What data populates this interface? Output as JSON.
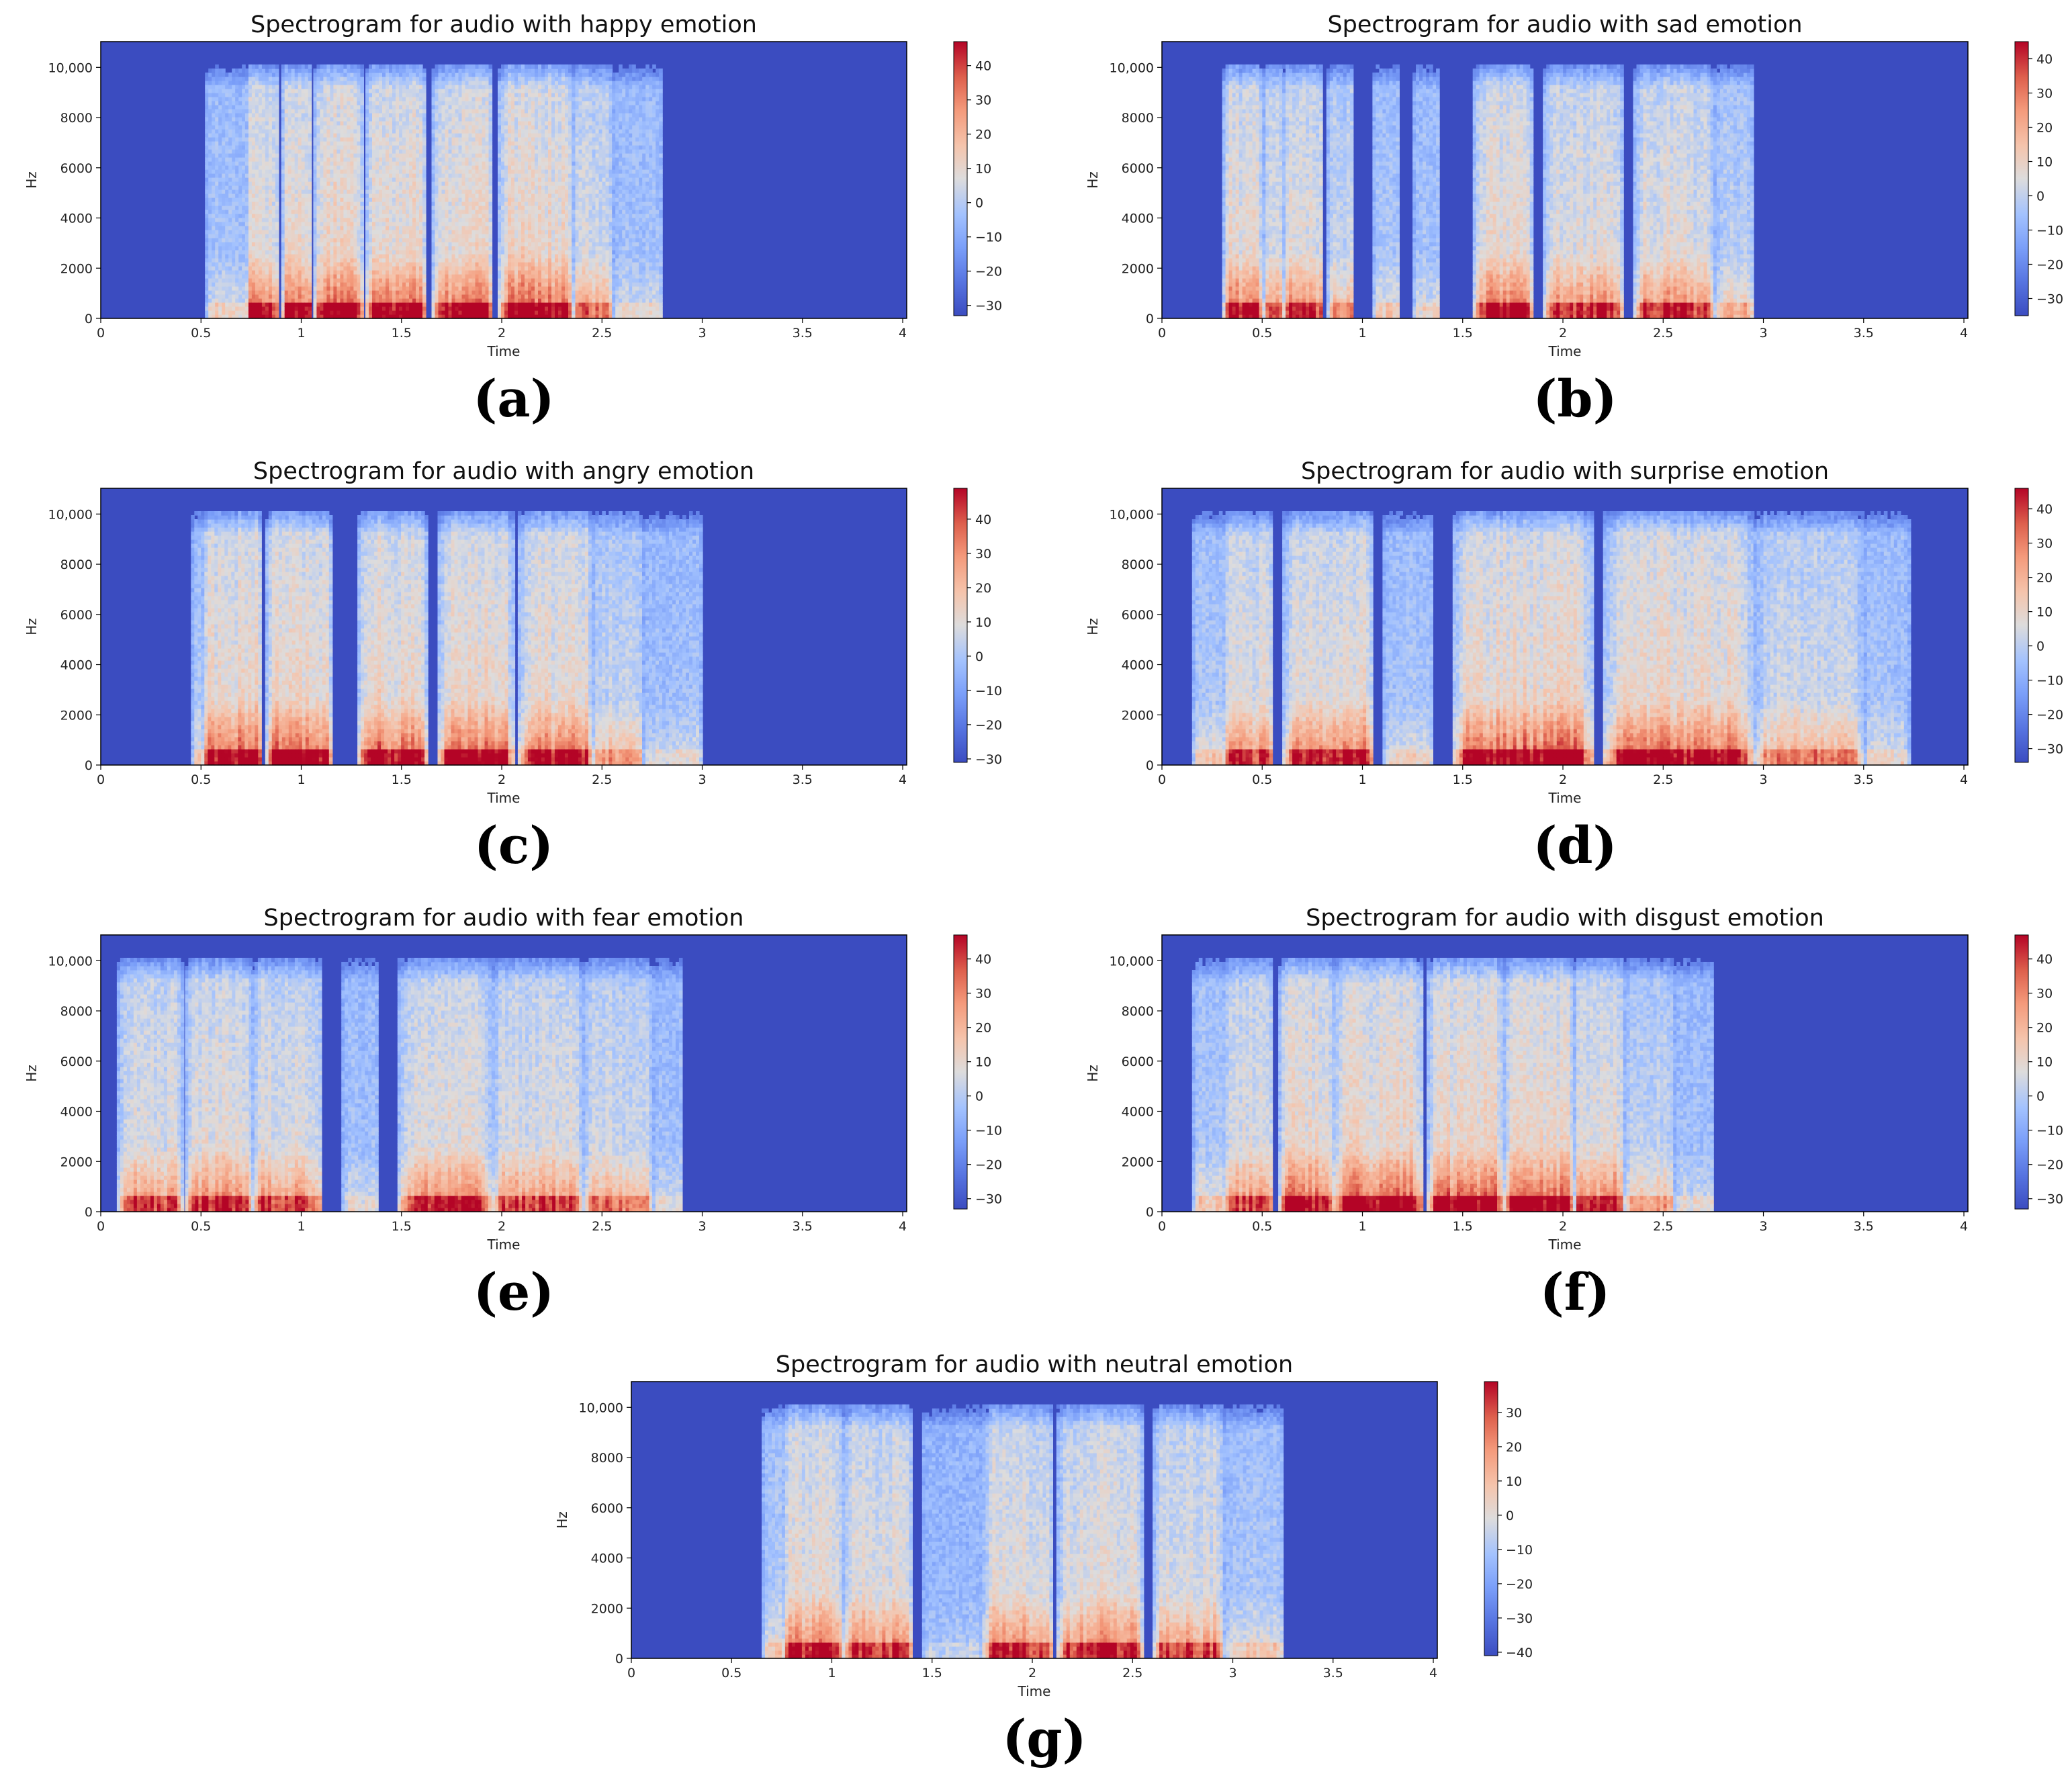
{
  "chart_data": [
    {
      "type": "heatmap",
      "id": "a",
      "subplot_label": "(a)",
      "title": "Spectrogram for audio with happy emotion",
      "xlabel": "Time",
      "ylabel": "Hz",
      "xlim": [
        0,
        4.02
      ],
      "ylim": [
        0,
        11025
      ],
      "xticks": [
        0,
        0.5,
        1,
        1.5,
        2,
        2.5,
        3,
        3.5,
        4
      ],
      "xtick_labels": [
        "0",
        "0.5",
        "1",
        "1.5",
        "2",
        "2.5",
        "3",
        "3.5",
        "4"
      ],
      "yticks": [
        0,
        2000,
        4000,
        6000,
        8000,
        10000
      ],
      "ytick_labels": [
        "0",
        "2000",
        "4000",
        "6000",
        "8000",
        "10,000"
      ],
      "colorbar": {
        "ticks": [
          40,
          30,
          20,
          10,
          0,
          -10,
          -20,
          -30
        ],
        "labels": [
          "40",
          "30",
          "20",
          "10",
          "0",
          "−10",
          "−20",
          "−30"
        ],
        "vmin": -33,
        "vmax": 47
      },
      "segments": [
        [
          0.52,
          0.72,
          0.35
        ],
        [
          0.72,
          0.88,
          0.9
        ],
        [
          0.9,
          1.05,
          0.95
        ],
        [
          1.06,
          1.3,
          1.0
        ],
        [
          1.32,
          1.62,
          1.0
        ],
        [
          1.65,
          1.95,
          0.95
        ],
        [
          1.98,
          2.35,
          1.0
        ],
        [
          2.35,
          2.55,
          0.7
        ],
        [
          2.55,
          2.8,
          0.3
        ]
      ]
    },
    {
      "type": "heatmap",
      "id": "b",
      "subplot_label": "(b)",
      "title": "Spectrogram for audio with sad emotion",
      "xlabel": "Time",
      "ylabel": "Hz",
      "xlim": [
        0,
        4.02
      ],
      "ylim": [
        0,
        11025
      ],
      "xticks": [
        0,
        0.5,
        1,
        1.5,
        2,
        2.5,
        3,
        3.5,
        4
      ],
      "xtick_labels": [
        "0",
        "0.5",
        "1",
        "1.5",
        "2",
        "2.5",
        "3",
        "3.5",
        "4"
      ],
      "yticks": [
        0,
        2000,
        4000,
        6000,
        8000,
        10000
      ],
      "ytick_labels": [
        "0",
        "2000",
        "4000",
        "6000",
        "8000",
        "10,000"
      ],
      "colorbar": {
        "ticks": [
          40,
          30,
          20,
          10,
          0,
          -10,
          -20,
          -30
        ],
        "labels": [
          "40",
          "30",
          "20",
          "10",
          "0",
          "−10",
          "−20",
          "−30"
        ],
        "vmin": -35,
        "vmax": 45
      },
      "segments": [
        [
          0.3,
          0.5,
          0.9
        ],
        [
          0.5,
          0.6,
          0.7
        ],
        [
          0.6,
          0.8,
          0.8
        ],
        [
          0.82,
          0.95,
          0.6
        ],
        [
          1.05,
          1.18,
          0.4
        ],
        [
          1.25,
          1.38,
          0.35
        ],
        [
          1.55,
          1.85,
          0.9
        ],
        [
          1.9,
          2.3,
          0.85
        ],
        [
          2.35,
          2.75,
          0.85
        ],
        [
          2.75,
          2.95,
          0.5
        ]
      ]
    },
    {
      "type": "heatmap",
      "id": "c",
      "subplot_label": "(c)",
      "title": "Spectrogram for audio with angry emotion",
      "xlabel": "Time",
      "ylabel": "Hz",
      "xlim": [
        0,
        4.02
      ],
      "ylim": [
        0,
        11025
      ],
      "xticks": [
        0,
        0.5,
        1,
        1.5,
        2,
        2.5,
        3,
        3.5,
        4
      ],
      "xtick_labels": [
        "0",
        "0.5",
        "1",
        "1.5",
        "2",
        "2.5",
        "3",
        "3.5",
        "4"
      ],
      "yticks": [
        0,
        2000,
        4000,
        6000,
        8000,
        10000
      ],
      "ytick_labels": [
        "0",
        "2000",
        "4000",
        "6000",
        "8000",
        "10,000"
      ],
      "colorbar": {
        "ticks": [
          40,
          30,
          20,
          10,
          0,
          -10,
          -20,
          -30
        ],
        "labels": [
          "40",
          "30",
          "20",
          "10",
          "0",
          "−10",
          "−20",
          "−30"
        ],
        "vmin": -31,
        "vmax": 49
      },
      "segments": [
        [
          0.45,
          0.5,
          0.4
        ],
        [
          0.5,
          0.8,
          1.0
        ],
        [
          0.82,
          1.15,
          1.0
        ],
        [
          1.28,
          1.62,
          1.0
        ],
        [
          1.68,
          2.05,
          1.0
        ],
        [
          2.08,
          2.45,
          0.95
        ],
        [
          2.45,
          2.7,
          0.6
        ],
        [
          2.7,
          3.0,
          0.3
        ]
      ]
    },
    {
      "type": "heatmap",
      "id": "d",
      "subplot_label": "(d)",
      "title": "Spectrogram for audio with surprise emotion",
      "xlabel": "Time",
      "ylabel": "Hz",
      "xlim": [
        0,
        4.02
      ],
      "ylim": [
        0,
        11025
      ],
      "xticks": [
        0,
        0.5,
        1,
        1.5,
        2,
        2.5,
        3,
        3.5,
        4
      ],
      "xtick_labels": [
        "0",
        "0.5",
        "1",
        "1.5",
        "2",
        "2.5",
        "3",
        "3.5",
        "4"
      ],
      "yticks": [
        0,
        2000,
        4000,
        6000,
        8000,
        10000
      ],
      "ytick_labels": [
        "0",
        "2000",
        "4000",
        "6000",
        "8000",
        "10,000"
      ],
      "colorbar": {
        "ticks": [
          40,
          30,
          20,
          10,
          0,
          -10,
          -20,
          -30
        ],
        "labels": [
          "40",
          "30",
          "20",
          "10",
          "0",
          "−10",
          "−20",
          "−30"
        ],
        "vmin": -34,
        "vmax": 46
      },
      "segments": [
        [
          0.15,
          0.3,
          0.4
        ],
        [
          0.3,
          0.55,
          0.8
        ],
        [
          0.6,
          1.05,
          0.95
        ],
        [
          1.1,
          1.35,
          0.35
        ],
        [
          1.45,
          2.15,
          1.0
        ],
        [
          2.2,
          2.95,
          0.95
        ],
        [
          2.95,
          3.5,
          0.65
        ],
        [
          3.5,
          3.72,
          0.35
        ]
      ]
    },
    {
      "type": "heatmap",
      "id": "e",
      "subplot_label": "(e)",
      "title": "Spectrogram for audio with fear emotion",
      "xlabel": "Time",
      "ylabel": "Hz",
      "xlim": [
        0,
        4.02
      ],
      "ylim": [
        0,
        11025
      ],
      "xticks": [
        0,
        0.5,
        1,
        1.5,
        2,
        2.5,
        3,
        3.5,
        4
      ],
      "xtick_labels": [
        "0",
        "0.5",
        "1",
        "1.5",
        "2",
        "2.5",
        "3",
        "3.5",
        "4"
      ],
      "yticks": [
        0,
        2000,
        4000,
        6000,
        8000,
        10000
      ],
      "ytick_labels": [
        "0",
        "2000",
        "4000",
        "6000",
        "8000",
        "10,000"
      ],
      "colorbar": {
        "ticks": [
          40,
          30,
          20,
          10,
          0,
          -10,
          -20,
          -30
        ],
        "labels": [
          "40",
          "30",
          "20",
          "10",
          "0",
          "−10",
          "−20",
          "−30"
        ],
        "vmin": -33,
        "vmax": 47
      },
      "segments": [
        [
          0.08,
          0.4,
          0.8
        ],
        [
          0.42,
          0.75,
          0.85
        ],
        [
          0.75,
          1.1,
          0.8
        ],
        [
          1.2,
          1.38,
          0.3
        ],
        [
          1.48,
          1.95,
          0.85
        ],
        [
          1.95,
          2.4,
          0.8
        ],
        [
          2.4,
          2.75,
          0.65
        ],
        [
          2.75,
          2.9,
          0.3
        ]
      ]
    },
    {
      "type": "heatmap",
      "id": "f",
      "subplot_label": "(f)",
      "title": "Spectrogram for audio with disgust emotion",
      "xlabel": "Time",
      "ylabel": "Hz",
      "xlim": [
        0,
        4.02
      ],
      "ylim": [
        0,
        11025
      ],
      "xticks": [
        0,
        0.5,
        1,
        1.5,
        2,
        2.5,
        3,
        3.5,
        4
      ],
      "xtick_labels": [
        "0",
        "0.5",
        "1",
        "1.5",
        "2",
        "2.5",
        "3",
        "3.5",
        "4"
      ],
      "yticks": [
        0,
        2000,
        4000,
        6000,
        8000,
        10000
      ],
      "ytick_labels": [
        "0",
        "2000",
        "4000",
        "6000",
        "8000",
        "10,000"
      ],
      "colorbar": {
        "ticks": [
          40,
          30,
          20,
          10,
          0,
          -10,
          -20,
          -30
        ],
        "labels": [
          "40",
          "30",
          "20",
          "10",
          "0",
          "−10",
          "−20",
          "−30"
        ],
        "vmin": -33,
        "vmax": 47
      },
      "segments": [
        [
          0.15,
          0.3,
          0.4
        ],
        [
          0.3,
          0.55,
          0.8
        ],
        [
          0.58,
          0.85,
          0.95
        ],
        [
          0.85,
          1.3,
          1.0
        ],
        [
          1.32,
          1.7,
          1.0
        ],
        [
          1.7,
          2.05,
          1.0
        ],
        [
          2.05,
          2.3,
          0.9
        ],
        [
          2.3,
          2.55,
          0.6
        ],
        [
          2.55,
          2.75,
          0.3
        ]
      ]
    },
    {
      "type": "heatmap",
      "id": "g",
      "subplot_label": "(g)",
      "title": "Spectrogram for audio with neutral emotion",
      "xlabel": "Time",
      "ylabel": "Hz",
      "xlim": [
        0,
        4.02
      ],
      "ylim": [
        0,
        11025
      ],
      "xticks": [
        0,
        0.5,
        1,
        1.5,
        2,
        2.5,
        3,
        3.5,
        4
      ],
      "xtick_labels": [
        "0",
        "0.5",
        "1",
        "1.5",
        "2",
        "2.5",
        "3",
        "3.5",
        "4"
      ],
      "yticks": [
        0,
        2000,
        4000,
        6000,
        8000,
        10000
      ],
      "ytick_labels": [
        "0",
        "2000",
        "4000",
        "6000",
        "8000",
        "10,000"
      ],
      "colorbar": {
        "ticks": [
          30,
          20,
          10,
          0,
          -10,
          -20,
          -30,
          -40
        ],
        "labels": [
          "30",
          "20",
          "10",
          "0",
          "−10",
          "−20",
          "−30",
          "−40"
        ],
        "vmin": -41,
        "vmax": 39
      },
      "segments": [
        [
          0.65,
          0.75,
          0.4
        ],
        [
          0.75,
          1.05,
          0.9
        ],
        [
          1.05,
          1.4,
          0.85
        ],
        [
          1.45,
          1.75,
          0.2
        ],
        [
          1.75,
          2.1,
          0.85
        ],
        [
          2.12,
          2.55,
          0.85
        ],
        [
          2.6,
          2.95,
          0.8
        ],
        [
          2.95,
          3.25,
          0.4
        ]
      ]
    }
  ],
  "colors": {
    "background": "#3b4cc0",
    "low": "#3b4cc0",
    "mid": "#dddddd",
    "high": "#b40426"
  }
}
